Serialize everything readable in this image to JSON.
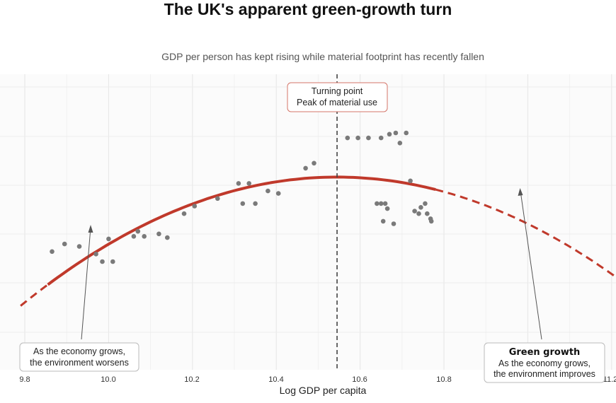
{
  "chart_data": {
    "type": "scatter",
    "title": "The UK's apparent green-growth turn",
    "subtitle": "GDP per person has kept rising while material footprint has recently fallen",
    "xlabel": "Log GDP per capita",
    "ylabel": "",
    "xlim": [
      9.79,
      11.22
    ],
    "x_ticks": [
      "9.8",
      "10.0",
      "10.2",
      "10.4",
      "10.6",
      "10.8",
      "11.2"
    ],
    "grid": true,
    "series": [
      {
        "kind": "points",
        "x": [
          9.865,
          9.895,
          9.93,
          9.97,
          9.985,
          10.0,
          10.01,
          10.06,
          10.07,
          10.085,
          10.12,
          10.14,
          10.18,
          10.205,
          10.26,
          10.31,
          10.32,
          10.335,
          10.35,
          10.38,
          10.405,
          10.47,
          10.49,
          10.57,
          10.595,
          10.62,
          10.65,
          10.67,
          10.685,
          10.695,
          10.71,
          10.72,
          10.64,
          10.65,
          10.66,
          10.665,
          10.68,
          10.655,
          10.73,
          10.74,
          10.745,
          10.755,
          10.76,
          10.768,
          10.77
        ],
        "y": [
          0.32,
          0.35,
          0.34,
          0.31,
          0.28,
          0.37,
          0.28,
          0.38,
          0.4,
          0.38,
          0.39,
          0.375,
          0.47,
          0.5,
          0.53,
          0.59,
          0.51,
          0.59,
          0.51,
          0.56,
          0.55,
          0.65,
          0.67,
          0.77,
          0.77,
          0.77,
          0.77,
          0.785,
          0.79,
          0.75,
          0.79,
          0.6,
          0.51,
          0.51,
          0.51,
          0.49,
          0.43,
          0.44,
          0.48,
          0.47,
          0.495,
          0.51,
          0.47,
          0.45,
          0.44
        ]
      },
      {
        "kind": "fitted-curve",
        "color": "#c0392b",
        "vertex_x": 10.545,
        "vertex_y": 0.615,
        "curvature": 0.895,
        "solid_range": [
          9.855,
          10.78
        ],
        "dashed_range": [
          9.79,
          11.22
        ]
      }
    ],
    "reference_line": {
      "x": 10.545,
      "style": "dashed"
    },
    "annotations": [
      {
        "id": "peak",
        "lines": [
          "Turning point",
          "Peak of material use"
        ]
      },
      {
        "id": "worsens",
        "lines": [
          "As the economy grows,",
          "the environment worsens"
        ]
      },
      {
        "id": "improves",
        "heading": "Green growth",
        "lines": [
          "As the economy grows,",
          "the environment improves"
        ]
      }
    ]
  }
}
